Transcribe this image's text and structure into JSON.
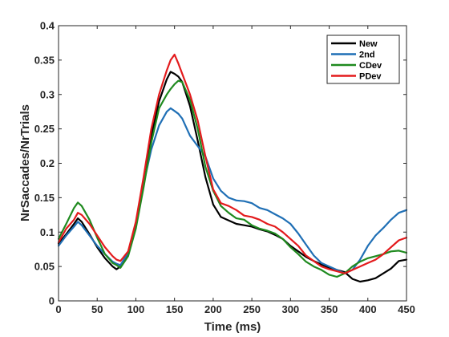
{
  "chart_data": {
    "type": "line",
    "title": "",
    "xlabel": "Time (ms)",
    "ylabel": "NrSaccades/NrTrials",
    "xlim": [
      0,
      450
    ],
    "ylim": [
      0,
      0.4
    ],
    "x_ticks": [
      "0",
      "50",
      "100",
      "150",
      "200",
      "250",
      "300",
      "350",
      "400",
      "450"
    ],
    "y_ticks": [
      "0",
      "0.05",
      "0.1",
      "0.15",
      "0.2",
      "0.25",
      "0.3",
      "0.35",
      "0.4"
    ],
    "legend_position": "top-right",
    "grid": false,
    "x": [
      0,
      10,
      20,
      25,
      30,
      40,
      50,
      60,
      70,
      75,
      80,
      90,
      100,
      110,
      120,
      130,
      140,
      145,
      150,
      155,
      160,
      170,
      180,
      190,
      200,
      210,
      220,
      230,
      240,
      250,
      260,
      270,
      280,
      290,
      300,
      310,
      320,
      330,
      340,
      350,
      360,
      370,
      380,
      390,
      400,
      410,
      420,
      430,
      440,
      450
    ],
    "series": [
      {
        "name": "New",
        "color": "#000000",
        "values": [
          0.083,
          0.097,
          0.112,
          0.12,
          0.115,
          0.097,
          0.078,
          0.062,
          0.05,
          0.046,
          0.05,
          0.068,
          0.11,
          0.175,
          0.24,
          0.29,
          0.322,
          0.333,
          0.33,
          0.326,
          0.318,
          0.283,
          0.233,
          0.18,
          0.14,
          0.122,
          0.117,
          0.112,
          0.11,
          0.108,
          0.104,
          0.101,
          0.096,
          0.09,
          0.08,
          0.072,
          0.064,
          0.058,
          0.053,
          0.048,
          0.045,
          0.042,
          0.032,
          0.028,
          0.03,
          0.033,
          0.04,
          0.047,
          0.058,
          0.06
        ]
      },
      {
        "name": "2nd",
        "color": "#1f6fb5",
        "values": [
          0.08,
          0.095,
          0.108,
          0.115,
          0.11,
          0.095,
          0.08,
          0.068,
          0.057,
          0.054,
          0.052,
          0.07,
          0.11,
          0.17,
          0.22,
          0.255,
          0.275,
          0.28,
          0.276,
          0.272,
          0.265,
          0.24,
          0.225,
          0.21,
          0.178,
          0.16,
          0.15,
          0.146,
          0.145,
          0.142,
          0.135,
          0.132,
          0.126,
          0.12,
          0.112,
          0.098,
          0.082,
          0.066,
          0.055,
          0.05,
          0.045,
          0.04,
          0.045,
          0.06,
          0.08,
          0.095,
          0.106,
          0.118,
          0.128,
          0.132
        ]
      },
      {
        "name": "CDev",
        "color": "#1f8a1f",
        "values": [
          0.09,
          0.112,
          0.135,
          0.143,
          0.138,
          0.118,
          0.092,
          0.068,
          0.055,
          0.052,
          0.048,
          0.065,
          0.105,
          0.165,
          0.23,
          0.28,
          0.3,
          0.308,
          0.315,
          0.32,
          0.318,
          0.292,
          0.25,
          0.195,
          0.16,
          0.138,
          0.128,
          0.12,
          0.118,
          0.11,
          0.105,
          0.102,
          0.098,
          0.09,
          0.078,
          0.068,
          0.057,
          0.05,
          0.045,
          0.038,
          0.035,
          0.04,
          0.05,
          0.057,
          0.062,
          0.065,
          0.068,
          0.072,
          0.073,
          0.07
        ]
      },
      {
        "name": "PDev",
        "color": "#e31a1c",
        "values": [
          0.085,
          0.105,
          0.118,
          0.128,
          0.125,
          0.112,
          0.095,
          0.078,
          0.065,
          0.06,
          0.058,
          0.072,
          0.115,
          0.18,
          0.25,
          0.3,
          0.335,
          0.35,
          0.358,
          0.345,
          0.33,
          0.3,
          0.262,
          0.21,
          0.162,
          0.142,
          0.138,
          0.132,
          0.124,
          0.122,
          0.118,
          0.112,
          0.108,
          0.1,
          0.09,
          0.08,
          0.066,
          0.058,
          0.05,
          0.046,
          0.043,
          0.04,
          0.045,
          0.05,
          0.055,
          0.06,
          0.068,
          0.078,
          0.088,
          0.092
        ]
      }
    ]
  }
}
